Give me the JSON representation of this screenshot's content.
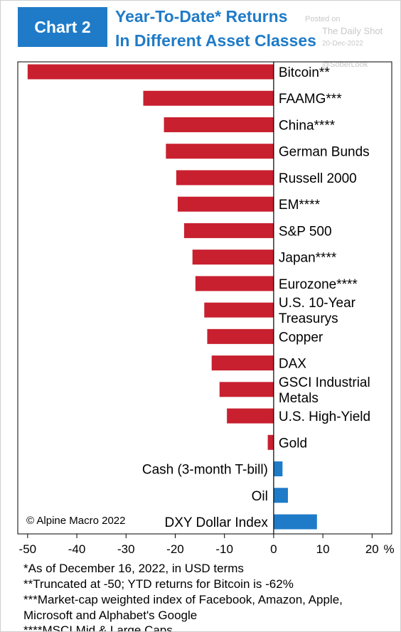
{
  "header": {
    "badge": "Chart 2",
    "title_line1": "Year-To-Date* Returns",
    "title_line2": "In Different Asset Classes"
  },
  "watermark": {
    "posted_on": "Posted on",
    "source": "The Daily Shot",
    "date": "20-Dec-2022",
    "handle": "@SoberLook"
  },
  "colors": {
    "negative": "#c8202f",
    "positive": "#1f7bc8",
    "accent": "#1f7bc8"
  },
  "chart_data": {
    "type": "bar",
    "orientation": "horizontal",
    "categories": [
      [
        "Bitcoin**"
      ],
      [
        "FAAMG***"
      ],
      [
        "China****"
      ],
      [
        "German Bunds"
      ],
      [
        "Russell 2000"
      ],
      [
        "EM****"
      ],
      [
        "S&P 500"
      ],
      [
        "Japan****"
      ],
      [
        "Eurozone****"
      ],
      [
        "U.S. 10-Year",
        "Treasurys"
      ],
      [
        "Copper"
      ],
      [
        "DAX"
      ],
      [
        "GSCI Industrial",
        "Metals"
      ],
      [
        "U.S. High-Yield"
      ],
      [
        "Gold"
      ],
      [
        "Cash (3-month T-bill)"
      ],
      [
        "Oil"
      ],
      [
        "DXY Dollar Index"
      ]
    ],
    "values": [
      -50,
      -26.5,
      -22.3,
      -21.9,
      -19.8,
      -19.5,
      -18.2,
      -16.5,
      -15.9,
      -14.1,
      -13.5,
      -12.6,
      -11.0,
      -9.5,
      -1.2,
      1.8,
      2.9,
      8.8
    ],
    "xlim": [
      -52,
      24
    ],
    "x_ticks": [
      "-50",
      "-40",
      "-30",
      "-20",
      "-10",
      "0",
      "10",
      "20"
    ],
    "x_tick_values": [
      -50,
      -40,
      -30,
      -20,
      -10,
      0,
      10,
      20
    ],
    "x_unit": "%",
    "grid": false,
    "annotation": "© Alpine Macro 2022"
  },
  "footnotes": [
    "*As of December 16, 2022, in USD terms",
    "**Truncated at -50; YTD returns for Bitcoin is -62%",
    "***Market-cap weighted index of Facebook, Amazon, Apple,",
    "Microsoft and Alphabet's Google",
    "****MSCI Mid & Large Caps"
  ]
}
